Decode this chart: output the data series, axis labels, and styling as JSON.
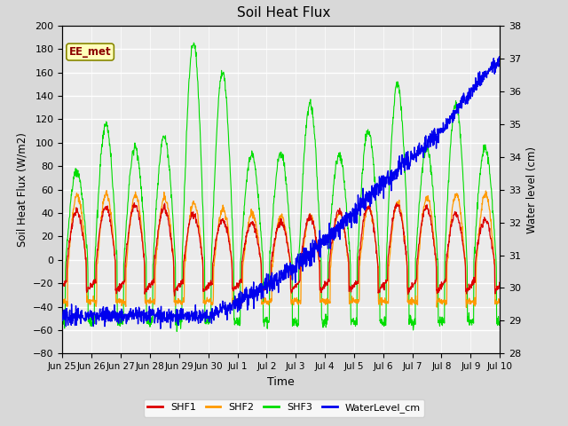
{
  "title": "Soil Heat Flux",
  "ylabel_left": "Soil Heat Flux (W/m2)",
  "ylabel_right": "Water level (cm)",
  "xlabel": "Time",
  "annotation": "EE_met",
  "ylim_left": [
    -80,
    200
  ],
  "ylim_right": [
    28.0,
    38.0
  ],
  "yticks_left": [
    -80,
    -60,
    -40,
    -20,
    0,
    20,
    40,
    60,
    80,
    100,
    120,
    140,
    160,
    180,
    200
  ],
  "yticks_right": [
    28.0,
    29.0,
    30.0,
    31.0,
    32.0,
    33.0,
    34.0,
    35.0,
    36.0,
    37.0,
    38.0
  ],
  "xtick_labels": [
    "Jun 25",
    "Jun 26",
    "Jun 27",
    "Jun 28",
    "Jun 29",
    "Jun 30",
    "Jul 1",
    "Jul 2",
    "Jul 3",
    "Jul 4",
    "Jul 5",
    "Jul 6",
    "Jul 7",
    "Jul 8",
    "Jul 9",
    "Jul 10"
  ],
  "colors": {
    "SHF1": "#dd0000",
    "SHF2": "#ff9900",
    "SHF3": "#00dd00",
    "WaterLevel_cm": "#0000ee"
  },
  "bg_color": "#d8d8d8",
  "plot_bg_color": "#ebebeb",
  "grid_color": "#ffffff",
  "n_points": 1500,
  "n_days": 15
}
